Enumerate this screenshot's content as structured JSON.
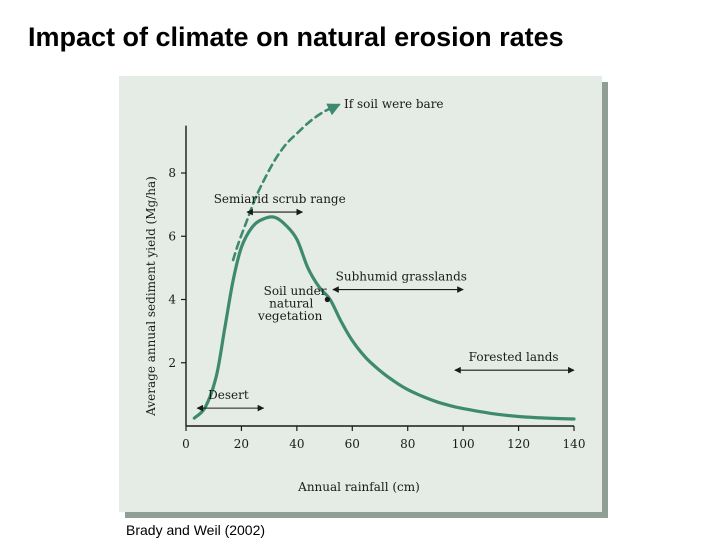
{
  "title": "Impact of climate on natural erosion rates",
  "source": "Brady and Weil (2002)",
  "colors": {
    "curve": "#3e8a70",
    "bare_soil": "#3e8a70",
    "panel_background": "#e5ebe5",
    "panel_shadow": "#8f9f95",
    "axes": "#1a1a1a"
  },
  "chart_data": {
    "type": "line",
    "xlabel": "Annual rainfall (cm)",
    "ylabel": "Average annual sediment yield (Mg/ha)",
    "xlim": [
      0,
      140
    ],
    "ylim": [
      0,
      9.5
    ],
    "x_ticks": [
      0,
      20,
      40,
      60,
      80,
      100,
      120,
      140
    ],
    "y_ticks": [
      2,
      4,
      6,
      8
    ],
    "grid": false,
    "series": [
      {
        "name": "Soil under natural vegetation",
        "style": "solid",
        "x": [
          3,
          7,
          11,
          14,
          17,
          20,
          24,
          28,
          32,
          36,
          40,
          44,
          48,
          52,
          56,
          60,
          65,
          70,
          75,
          80,
          85,
          90,
          95,
          100,
          110,
          120,
          130,
          140
        ],
        "y": [
          0.25,
          0.6,
          1.6,
          3.1,
          4.6,
          5.65,
          6.3,
          6.55,
          6.6,
          6.35,
          5.9,
          5.0,
          4.4,
          4.0,
          3.3,
          2.7,
          2.15,
          1.75,
          1.42,
          1.15,
          0.95,
          0.78,
          0.65,
          0.55,
          0.4,
          0.3,
          0.25,
          0.22
        ]
      },
      {
        "name": "If soil were bare",
        "style": "dashed",
        "x": [
          17,
          19,
          22,
          25,
          28,
          32,
          36,
          40,
          45,
          50,
          55
        ],
        "y": [
          5.25,
          5.8,
          6.5,
          7.2,
          7.75,
          8.4,
          8.9,
          9.25,
          9.65,
          9.95,
          10.15
        ]
      }
    ],
    "highlight_point": {
      "x": 51,
      "y": 4.0
    },
    "annotations": [
      {
        "text": "If soil were bare",
        "x": 57,
        "y": 10.05
      },
      {
        "text": "Semiarid scrub range",
        "x": 10,
        "y": 7.05,
        "range": [
          22,
          42
        ]
      },
      {
        "text": "Subhumid grasslands",
        "x": 54,
        "y": 4.6,
        "range": [
          53,
          100
        ]
      },
      {
        "text": "Soil under",
        "x": 28,
        "y": 4.15
      },
      {
        "text": "natural",
        "x": 30,
        "y": 3.75
      },
      {
        "text": "vegetation",
        "x": 26,
        "y": 3.35
      },
      {
        "text": "Forested lands",
        "x": 102,
        "y": 2.05,
        "range": [
          97,
          140
        ]
      },
      {
        "text": "Desert",
        "x": 8,
        "y": 0.85,
        "range": [
          4,
          28
        ]
      }
    ]
  }
}
